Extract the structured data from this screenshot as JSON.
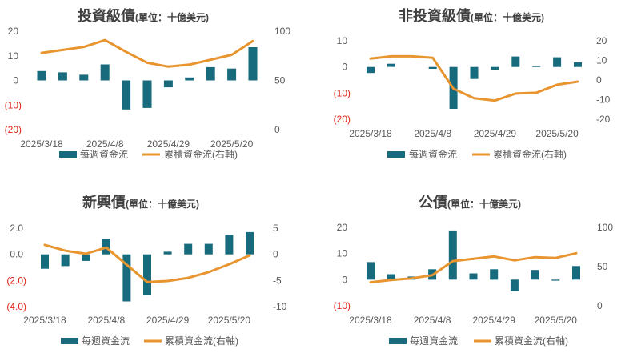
{
  "colors": {
    "bar": "#176b7d",
    "line": "#e8952f",
    "axis_text": "#595959",
    "negative_tick": "#e2231a"
  },
  "chart_data": [
    {
      "type": "bar",
      "title": "投資級債",
      "unit_note": "(單位：十億美元)",
      "categories": [
        "2025/3/18",
        "",
        "",
        "2025/4/8",
        "",
        "",
        "2025/4/29",
        "",
        "",
        "2025/5/20",
        ""
      ],
      "y_left": {
        "ylim": [
          -20,
          20
        ],
        "ticks": [
          20,
          10,
          0,
          -10,
          -20
        ],
        "tick_labels": [
          "20",
          "10",
          "0",
          "(10)",
          "(20)"
        ]
      },
      "y_right": {
        "ylim": [
          0,
          100
        ],
        "ticks": [
          100,
          50,
          0
        ],
        "tick_labels": [
          "100",
          "50",
          "0"
        ]
      },
      "series": [
        {
          "name": "每週資金流",
          "type": "bar",
          "axis": "left",
          "values": [
            3.8,
            3.3,
            2.3,
            6.5,
            -11.8,
            -11.2,
            -2.8,
            1.2,
            5.4,
            4.8,
            13.5
          ]
        },
        {
          "name": "累積資金流(右軸)",
          "type": "line",
          "axis": "right",
          "values": [
            78,
            81,
            84,
            91,
            79,
            68,
            64,
            66,
            71,
            76,
            90
          ]
        }
      ],
      "grid": false,
      "legend": "bottom"
    },
    {
      "type": "bar",
      "title": "非投資級債",
      "unit_note": "(單位：十億美元)",
      "categories": [
        "2025/3/18",
        "",
        "",
        "2025/4/8",
        "",
        "",
        "2025/4/29",
        "",
        "",
        "2025/5/20",
        ""
      ],
      "y_left": {
        "ylim": [
          -20,
          10
        ],
        "ticks": [
          10,
          0,
          -10,
          -20
        ],
        "tick_labels": [
          "10",
          "0",
          "(10)",
          "(20)"
        ]
      },
      "y_right": {
        "ylim": [
          -20,
          20
        ],
        "ticks": [
          20,
          10,
          0,
          -10,
          -20
        ],
        "tick_labels": [
          "20",
          "10",
          "0",
          "-10",
          "-20"
        ]
      },
      "series": [
        {
          "name": "每週資金流",
          "type": "bar",
          "axis": "left",
          "values": [
            -2.3,
            1.2,
            0.0,
            -0.7,
            -16.0,
            -4.6,
            -1.0,
            4.0,
            0.4,
            3.7,
            1.8
          ]
        },
        {
          "name": "累積資金流(右軸)",
          "type": "line",
          "axis": "right",
          "values": [
            10.9,
            12.1,
            12.1,
            11.3,
            -4.4,
            -9.3,
            -10.5,
            -6.9,
            -6.5,
            -2.4,
            -0.8
          ]
        }
      ],
      "grid": false,
      "legend": "bottom"
    },
    {
      "type": "bar",
      "title": "新興債",
      "unit_note": "(單位：十億美元)",
      "categories": [
        "2025/3/18",
        "",
        "",
        "2025/4/8",
        "",
        "",
        "2025/4/29",
        "",
        "",
        "2025/5/20",
        ""
      ],
      "y_left": {
        "ylim": [
          -4,
          2
        ],
        "ticks": [
          2,
          0,
          -2,
          -4
        ],
        "tick_labels": [
          "2.0",
          "0.0",
          "(2.0)",
          "(4.0)"
        ]
      },
      "y_right": {
        "ylim": [
          -10,
          5
        ],
        "ticks": [
          5,
          0,
          -5,
          -10
        ],
        "tick_labels": [
          "5",
          "0",
          "-5",
          "-10"
        ]
      },
      "series": [
        {
          "name": "每週資金流",
          "type": "bar",
          "axis": "left",
          "values": [
            -1.1,
            -0.9,
            -0.5,
            1.2,
            -3.6,
            -3.1,
            0.2,
            0.8,
            0.8,
            1.5,
            1.7
          ]
        },
        {
          "name": "累積資金流(右軸)",
          "type": "line",
          "axis": "right",
          "values": [
            1.8,
            0.7,
            0.1,
            1.3,
            -2.0,
            -5.3,
            -5.1,
            -4.5,
            -3.4,
            -1.9,
            -0.2
          ]
        }
      ],
      "grid": false,
      "legend": "bottom"
    },
    {
      "type": "bar",
      "title": "公債",
      "unit_note": "(單位：十億美元)",
      "categories": [
        "2025/3/18",
        "",
        "",
        "2025/4/8",
        "",
        "",
        "2025/4/29",
        "",
        "",
        "2025/5/20",
        ""
      ],
      "y_left": {
        "ylim": [
          -10,
          20
        ],
        "ticks": [
          20,
          10,
          0,
          -10
        ],
        "tick_labels": [
          "20",
          "10",
          "0",
          "(10)"
        ]
      },
      "y_right": {
        "ylim": [
          0,
          100
        ],
        "ticks": [
          100,
          50,
          0
        ],
        "tick_labels": [
          "100",
          "50",
          "0"
        ]
      },
      "series": [
        {
          "name": "每週資金流",
          "type": "bar",
          "axis": "left",
          "values": [
            6.7,
            2.1,
            1.2,
            4.0,
            18.8,
            2.4,
            4.0,
            -4.4,
            3.7,
            -0.4,
            5.2
          ]
        },
        {
          "name": "累積資金流(右軸)",
          "type": "line",
          "axis": "right",
          "values": [
            30,
            33,
            35,
            39,
            57,
            60,
            63,
            58,
            62,
            61,
            67
          ]
        }
      ],
      "grid": false,
      "legend": "bottom"
    }
  ]
}
